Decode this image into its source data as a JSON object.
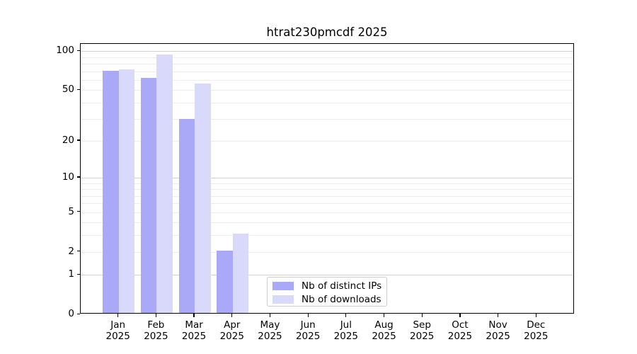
{
  "title": "htrat230pmcdf 2025",
  "chart_data": {
    "type": "bar",
    "title": "htrat230pmcdf 2025",
    "scale": "log1p",
    "categories": [
      "Jan",
      "Feb",
      "Mar",
      "Apr",
      "May",
      "Jun",
      "Jul",
      "Aug",
      "Sep",
      "Oct",
      "Nov",
      "Dec"
    ],
    "year_label": "2025",
    "series": [
      {
        "name": "Nb of distinct IPs",
        "color": "#a9a9f7",
        "values": [
          69,
          61,
          29,
          2,
          0,
          0,
          0,
          0,
          0,
          0,
          0,
          0
        ]
      },
      {
        "name": "Nb of downloads",
        "color": "#d9d9fb",
        "values": [
          71,
          92,
          55,
          3,
          0,
          0,
          0,
          0,
          0,
          0,
          0,
          0
        ]
      }
    ],
    "yticks": [
      0,
      1,
      2,
      5,
      10,
      20,
      50,
      100
    ],
    "major_gridlines": [
      1,
      10,
      100
    ],
    "minor_gridlines": [
      2,
      3,
      4,
      5,
      6,
      7,
      8,
      9,
      20,
      30,
      40,
      50,
      60,
      70,
      80,
      90
    ],
    "ylim": [
      0,
      115
    ],
    "xlabel": "",
    "ylabel": "",
    "grid": true,
    "legend_position": "lower center"
  },
  "colors": {
    "bar_ips": "#a9a9f7",
    "bar_downloads": "#d9d9fb",
    "grid_major": "#d2d2d2",
    "grid_minor": "#ededed",
    "axis": "#000000",
    "legend_border": "#cccccc",
    "background": "#ffffff"
  }
}
